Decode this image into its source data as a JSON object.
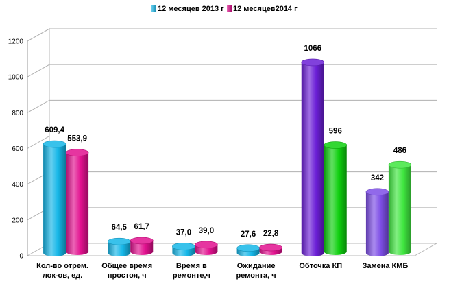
{
  "chart_data": {
    "type": "bar",
    "style": "3d-cylinder",
    "categories": [
      [
        "Кол-во отрем.",
        "лок-ов, ед."
      ],
      [
        "Общее время",
        "простоя, ч"
      ],
      [
        "Время в",
        "ремонте,ч"
      ],
      [
        "Ожидание",
        "ремонта, ч"
      ],
      [
        "Обточка КП"
      ],
      [
        "Замена КМБ"
      ]
    ],
    "series": [
      {
        "name": "12 месяцев 2013 г",
        "values": [
          609.4,
          64.5,
          37.0,
          27.6,
          1066,
          342
        ],
        "value_labels": [
          "609,4",
          "64,5",
          "37,0",
          "27,6",
          "1066",
          "342"
        ],
        "colors": [
          "#16b7e8",
          "#16b7e8",
          "#16b7e8",
          "#16b7e8",
          "#6b1fd6",
          "#7d4ee6"
        ],
        "legend_color": "#16b7e8"
      },
      {
        "name": "12 месяцев2014 г",
        "values": [
          553.9,
          61.7,
          39.0,
          22.8,
          596,
          486
        ],
        "value_labels": [
          "553,9",
          "61,7",
          "39,0",
          "22,8",
          "596",
          "486"
        ],
        "colors": [
          "#e2118f",
          "#e2118f",
          "#e2118f",
          "#e2118f",
          "#0fd00f",
          "#3fe63f"
        ],
        "legend_color": "#e2118f"
      }
    ],
    "ylim": [
      0,
      1200
    ],
    "yticks": [
      0,
      200,
      400,
      600,
      800,
      1000,
      1200
    ],
    "grid": true,
    "legend_position": "top-center",
    "title": "",
    "xlabel": "",
    "ylabel": ""
  }
}
